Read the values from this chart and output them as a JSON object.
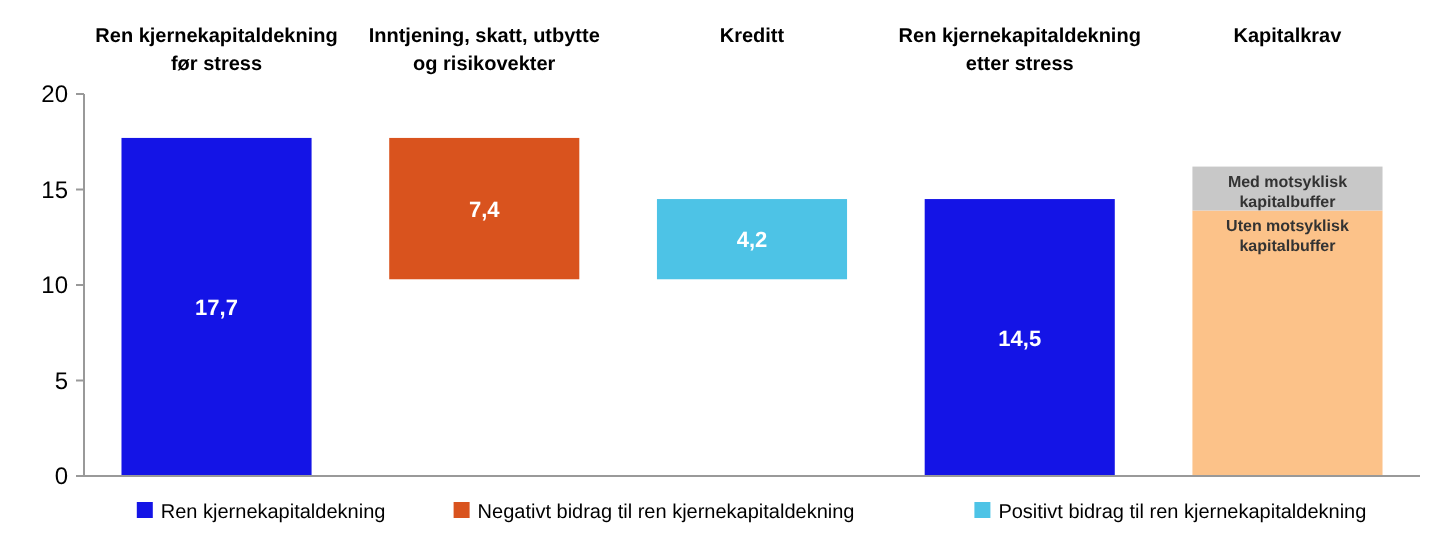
{
  "chart_data": {
    "type": "bar",
    "stacked": true,
    "categories": [
      "Ren kjernekapitaldekning før stress",
      "Inntjening, skatt, utbytte og risikovekter",
      "Kreditt",
      "Ren kjernekapitaldekning etter stress",
      "Kapitalkrav"
    ],
    "series": [
      {
        "name": "Ren kjernekapitaldekning",
        "color": "#1414e6",
        "values": [
          17.7,
          null,
          null,
          14.5,
          null
        ],
        "value_labels": [
          "17,7",
          null,
          null,
          "14,5",
          null
        ]
      },
      {
        "name": "Negativt bidrag til ren kjernekapitaldekning",
        "color": "#d9531e",
        "values": [
          null,
          7.4,
          null,
          null,
          null
        ],
        "base": [
          null,
          10.3,
          null,
          null,
          null
        ],
        "value_labels": [
          null,
          "7,4",
          null,
          null,
          null
        ]
      },
      {
        "name": "Positivt bidrag til ren kjernekapitaldekning",
        "color": "#4dc3e6",
        "values": [
          null,
          null,
          4.2,
          null,
          null
        ],
        "base": [
          null,
          null,
          10.3,
          null,
          null
        ],
        "value_labels": [
          null,
          null,
          "4,2",
          null,
          null
        ]
      },
      {
        "color": "#fcc289",
        "values": [
          null,
          null,
          null,
          null,
          13.9
        ]
      },
      {
        "color": "#c8c8c8",
        "values": [
          null,
          null,
          null,
          null,
          2.3
        ]
      }
    ],
    "ylim": [
      0,
      20
    ],
    "yticks": [
      0,
      5,
      10,
      15,
      20
    ],
    "grid": false,
    "legend": "bottom",
    "annotations": [
      "Med motsyklisk kapitalbuffer",
      "Uten motsyklisk kapitalbuffer"
    ]
  }
}
